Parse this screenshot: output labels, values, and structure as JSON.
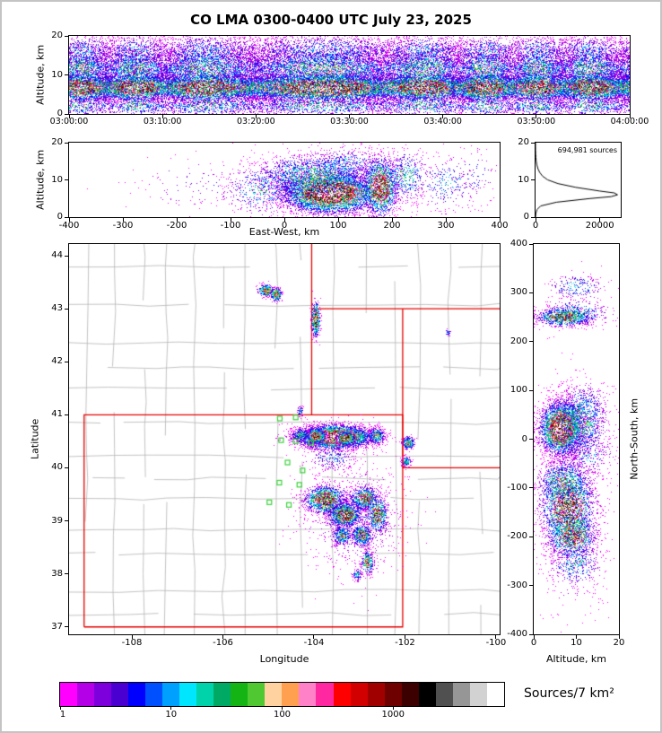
{
  "title": "CO LMA 0300-0400 UTC July 23, 2025",
  "colorbar": {
    "label": "Sources/7 km²",
    "scale": "log",
    "range": [
      1,
      10000
    ],
    "tick_labels": [
      "1",
      "10",
      "100",
      "1000"
    ],
    "palette": [
      "#ff00ff",
      "#b400e6",
      "#7d00dc",
      "#4b00d2",
      "#0000ff",
      "#0050ff",
      "#00a0ff",
      "#00e6ff",
      "#00d2aa",
      "#00aa64",
      "#14b414",
      "#50c832",
      "#ffd2a0",
      "#ffa050",
      "#ff82c8",
      "#ff28a0",
      "#ff0000",
      "#d20000",
      "#a00000",
      "#6e0000",
      "#3c0000",
      "#000000",
      "#505050",
      "#969696",
      "#d2d2d2",
      "#ffffff"
    ]
  },
  "colors": {
    "state_border": "#e60000",
    "county_border": "#b4b4b4",
    "station_marker": "#3cd23c",
    "histogram_line": "#000000"
  },
  "chart_data": [
    {
      "id": "time_height",
      "type": "scatter-density",
      "xlabel": "",
      "ylabel": "Altitude, km",
      "xlim": [
        0,
        3600
      ],
      "ylim": [
        0,
        20
      ],
      "xtick_vals": [
        0,
        600,
        1200,
        1800,
        2400,
        3000,
        3600
      ],
      "xtick_labels": [
        "03:00:00",
        "03:10:00",
        "03:20:00",
        "03:30:00",
        "03:40:00",
        "03:50:00",
        "04:00:00"
      ],
      "ytick_vals": [
        0,
        10,
        20
      ],
      "ytick_labels": [
        "0",
        "10",
        "20"
      ],
      "noise": {
        "seed": 7,
        "n": 60000,
        "bands": [
          {
            "w": 0.5,
            "alt": 6.8,
            "sd": 1.7,
            "p": 1.02
          },
          {
            "w": 0.22,
            "alt": 11.5,
            "sd": 2.4,
            "p": 0.5
          },
          {
            "w": 0.11,
            "alt": 16.0,
            "sd": 2.2,
            "p": 0.3
          },
          {
            "w": 0.09,
            "alt": 10.0,
            "sd": 6.0,
            "p": 0.25
          },
          {
            "w": 0.08,
            "alt": 2.2,
            "sd": 1.4,
            "p": 0.45
          }
        ]
      }
    },
    {
      "id": "east_west",
      "type": "scatter-density",
      "xlabel": "East-West, km",
      "ylabel": "Altitude, km",
      "xlim": [
        -400,
        400
      ],
      "ylim": [
        0,
        20
      ],
      "xtick_vals": [
        -400,
        -300,
        -200,
        -100,
        0,
        100,
        200,
        300,
        400
      ],
      "xtick_labels": [
        "-400",
        "-300",
        "-200",
        "-100",
        "0",
        "100",
        "200",
        "300",
        "400"
      ],
      "ytick_vals": [
        0,
        10,
        20
      ],
      "ytick_labels": [
        "0",
        "10",
        "20"
      ],
      "seed": 11,
      "clusters": [
        {
          "c": [
            85,
            6.5
          ],
          "s": [
            42,
            2.6
          ],
          "n": 7000,
          "p": 1.15
        },
        {
          "c": [
            55,
            11
          ],
          "s": [
            55,
            3.0
          ],
          "n": 1800,
          "p": 0.5
        },
        {
          "c": [
            120,
            14
          ],
          "s": [
            40,
            2.5
          ],
          "n": 400,
          "p": 0.35
        },
        {
          "c": [
            178,
            8
          ],
          "s": [
            16,
            3.8
          ],
          "n": 1800,
          "p": 0.95
        },
        {
          "c": [
            225,
            11
          ],
          "s": [
            22,
            3.5
          ],
          "n": 500,
          "p": 0.4
        },
        {
          "c": [
            300,
            9
          ],
          "s": [
            30,
            4
          ],
          "n": 260,
          "p": 0.3
        },
        {
          "c": [
            355,
            11
          ],
          "s": [
            25,
            4
          ],
          "n": 90,
          "p": 0.2
        },
        {
          "c": [
            -40,
            7.5
          ],
          "s": [
            38,
            3.5
          ],
          "n": 500,
          "p": 0.35
        },
        {
          "c": [
            -150,
            9
          ],
          "s": [
            70,
            4
          ],
          "n": 120,
          "p": 0.15
        }
      ]
    },
    {
      "id": "histogram",
      "type": "line",
      "annotation": "694,981 sources",
      "xlim": [
        0,
        26500
      ],
      "ylim": [
        0,
        20
      ],
      "xtick_vals": [
        0,
        20000
      ],
      "xtick_labels": [
        "0",
        "20000"
      ],
      "ytick_vals": [
        0,
        10,
        20
      ],
      "ytick_labels": [
        "0",
        "10",
        "20"
      ],
      "profile_alt_count": [
        [
          0,
          0
        ],
        [
          1,
          120
        ],
        [
          2,
          450
        ],
        [
          3,
          1600
        ],
        [
          4,
          6500
        ],
        [
          5,
          17000
        ],
        [
          5.5,
          23500
        ],
        [
          6,
          25500
        ],
        [
          6.5,
          24500
        ],
        [
          7,
          20000
        ],
        [
          8,
          12500
        ],
        [
          9,
          7000
        ],
        [
          10,
          3800
        ],
        [
          11,
          2200
        ],
        [
          12,
          1300
        ],
        [
          13,
          750
        ],
        [
          14,
          420
        ],
        [
          15,
          230
        ],
        [
          16,
          120
        ],
        [
          17,
          60
        ],
        [
          18,
          25
        ],
        [
          19,
          8
        ],
        [
          20,
          0
        ]
      ]
    },
    {
      "id": "map",
      "type": "scatter-density",
      "xlabel": "Longitude",
      "ylabel": "Latitude",
      "xlim": [
        -109.38,
        -99.92
      ],
      "ylim": [
        36.86,
        44.22
      ],
      "xtick_vals": [
        -108,
        -106,
        -104,
        -102,
        -100
      ],
      "xtick_labels": [
        "-108",
        "-106",
        "-104",
        "-102",
        "-100"
      ],
      "ytick_vals": [
        37,
        38,
        39,
        40,
        41,
        42,
        43,
        44
      ],
      "ytick_labels": [
        "37",
        "38",
        "39",
        "40",
        "41",
        "42",
        "43",
        "44"
      ],
      "seed": 42,
      "county_seed": 99,
      "state_borders": [
        [
          [
            -109.05,
            37.0
          ],
          [
            -109.05,
            41.0
          ],
          [
            -102.05,
            41.0
          ],
          [
            -102.05,
            37.0
          ],
          [
            -109.05,
            37.0
          ]
        ],
        [
          [
            -104.05,
            41.0
          ],
          [
            -104.05,
            44.22
          ]
        ],
        [
          [
            -104.05,
            43.0
          ],
          [
            -99.92,
            43.0
          ]
        ],
        [
          [
            -102.05,
            43.0
          ],
          [
            -102.05,
            40.0
          ]
        ],
        [
          [
            -102.05,
            40.0
          ],
          [
            -99.92,
            40.0
          ]
        ]
      ],
      "stations": [
        [
          -104.75,
          40.93
        ],
        [
          -104.4,
          40.95
        ],
        [
          -104.72,
          40.52
        ],
        [
          -104.4,
          40.5
        ],
        [
          -104.06,
          40.47
        ],
        [
          -104.58,
          40.1
        ],
        [
          -104.76,
          39.72
        ],
        [
          -104.32,
          39.68
        ],
        [
          -104.98,
          39.35
        ],
        [
          -104.55,
          39.3
        ],
        [
          -104.25,
          39.95
        ]
      ],
      "clusters": [
        {
          "c": [
            -103.55,
            40.58
          ],
          "s": [
            0.4,
            0.105
          ],
          "n": 5500,
          "p": 1.2
        },
        {
          "c": [
            -103.95,
            40.6
          ],
          "s": [
            0.1,
            0.07
          ],
          "n": 900,
          "p": 1.0
        },
        {
          "c": [
            -103.3,
            40.55
          ],
          "s": [
            0.1,
            0.06
          ],
          "n": 700,
          "p": 1.05
        },
        {
          "c": [
            -102.62,
            40.6
          ],
          "s": [
            0.1,
            0.08
          ],
          "n": 350,
          "p": 0.55
        },
        {
          "c": [
            -104.3,
            40.62
          ],
          "s": [
            0.1,
            0.06
          ],
          "n": 250,
          "p": 0.5
        },
        {
          "c": [
            -101.92,
            40.47
          ],
          "s": [
            0.07,
            0.06
          ],
          "n": 300,
          "p": 0.7
        },
        {
          "c": [
            -101.97,
            40.12
          ],
          "s": [
            0.05,
            0.05
          ],
          "n": 130,
          "p": 0.5
        },
        {
          "c": [
            -105.05,
            43.34
          ],
          "s": [
            0.09,
            0.055
          ],
          "n": 320,
          "p": 0.8
        },
        {
          "c": [
            -104.83,
            43.27
          ],
          "s": [
            0.06,
            0.06
          ],
          "n": 280,
          "p": 0.9
        },
        {
          "c": [
            -103.96,
            42.8
          ],
          "s": [
            0.045,
            0.16
          ],
          "n": 500,
          "p": 0.95
        },
        {
          "c": [
            -101.05,
            42.55
          ],
          "s": [
            0.035,
            0.035
          ],
          "n": 35,
          "p": 0.3
        },
        {
          "c": [
            -104.3,
            41.07
          ],
          "s": [
            0.035,
            0.05
          ],
          "n": 60,
          "p": 0.35
        },
        {
          "c": [
            -103.6,
            40.2
          ],
          "s": [
            0.3,
            0.15
          ],
          "n": 250,
          "p": 0.25
        },
        {
          "c": [
            -103.75,
            39.4
          ],
          "s": [
            0.22,
            0.13
          ],
          "n": 1500,
          "p": 0.9
        },
        {
          "c": [
            -103.32,
            39.12
          ],
          "s": [
            0.17,
            0.11
          ],
          "n": 1400,
          "p": 1.0
        },
        {
          "c": [
            -102.88,
            39.42
          ],
          "s": [
            0.15,
            0.11
          ],
          "n": 800,
          "p": 0.75
        },
        {
          "c": [
            -102.6,
            39.12
          ],
          "s": [
            0.11,
            0.16
          ],
          "n": 650,
          "p": 0.85
        },
        {
          "c": [
            -102.95,
            38.72
          ],
          "s": [
            0.11,
            0.1
          ],
          "n": 550,
          "p": 0.75
        },
        {
          "c": [
            -103.38,
            38.72
          ],
          "s": [
            0.1,
            0.09
          ],
          "n": 350,
          "p": 0.6
        },
        {
          "c": [
            -102.82,
            38.22
          ],
          "s": [
            0.07,
            0.11
          ],
          "n": 300,
          "p": 0.7
        },
        {
          "c": [
            -103.05,
            37.98
          ],
          "s": [
            0.05,
            0.06
          ],
          "n": 110,
          "p": 0.45
        },
        {
          "c": [
            -103.1,
            39.05
          ],
          "s": [
            0.55,
            0.5
          ],
          "n": 800,
          "p": 0.22
        }
      ]
    },
    {
      "id": "north_south",
      "type": "scatter-density",
      "xlabel": "Altitude, km",
      "ylabel": "North-South, km",
      "xlim": [
        0,
        20
      ],
      "ylim": [
        -400,
        400
      ],
      "xtick_vals": [
        0,
        10,
        20
      ],
      "xtick_labels": [
        "0",
        "10",
        "20"
      ],
      "ytick_vals": [
        -400,
        -300,
        -200,
        -100,
        0,
        100,
        200,
        300,
        400
      ],
      "ytick_labels": [
        "-400",
        "-300",
        "-200",
        "-100",
        "0",
        "100",
        "200",
        "300",
        "400"
      ],
      "seed": 13,
      "clusters": [
        {
          "c": [
            6.5,
            22
          ],
          "s": [
            2.4,
            26
          ],
          "n": 4500,
          "p": 1.15
        },
        {
          "c": [
            11,
            35
          ],
          "s": [
            3.0,
            38
          ],
          "n": 1100,
          "p": 0.5
        },
        {
          "c": [
            12,
            65
          ],
          "s": [
            3.0,
            28
          ],
          "n": 280,
          "p": 0.3
        },
        {
          "c": [
            13,
            -30
          ],
          "s": [
            3.0,
            25
          ],
          "n": 250,
          "p": 0.3
        },
        {
          "c": [
            7,
            250
          ],
          "s": [
            3.0,
            9
          ],
          "n": 1100,
          "p": 0.9
        },
        {
          "c": [
            10,
            258
          ],
          "s": [
            4.0,
            14
          ],
          "n": 350,
          "p": 0.45
        },
        {
          "c": [
            10,
            312
          ],
          "s": [
            3.5,
            14
          ],
          "n": 220,
          "p": 0.3
        },
        {
          "c": [
            8,
            -140
          ],
          "s": [
            3.0,
            42
          ],
          "n": 2600,
          "p": 0.95
        },
        {
          "c": [
            9,
            -198
          ],
          "s": [
            2.8,
            24
          ],
          "n": 1100,
          "p": 0.8
        },
        {
          "c": [
            7,
            -88
          ],
          "s": [
            3.0,
            24
          ],
          "n": 800,
          "p": 0.6
        },
        {
          "c": [
            10,
            -258
          ],
          "s": [
            3.0,
            22
          ],
          "n": 350,
          "p": 0.4
        },
        {
          "c": [
            9,
            -150
          ],
          "s": [
            4.5,
            110
          ],
          "n": 650,
          "p": 0.18
        }
      ]
    }
  ]
}
